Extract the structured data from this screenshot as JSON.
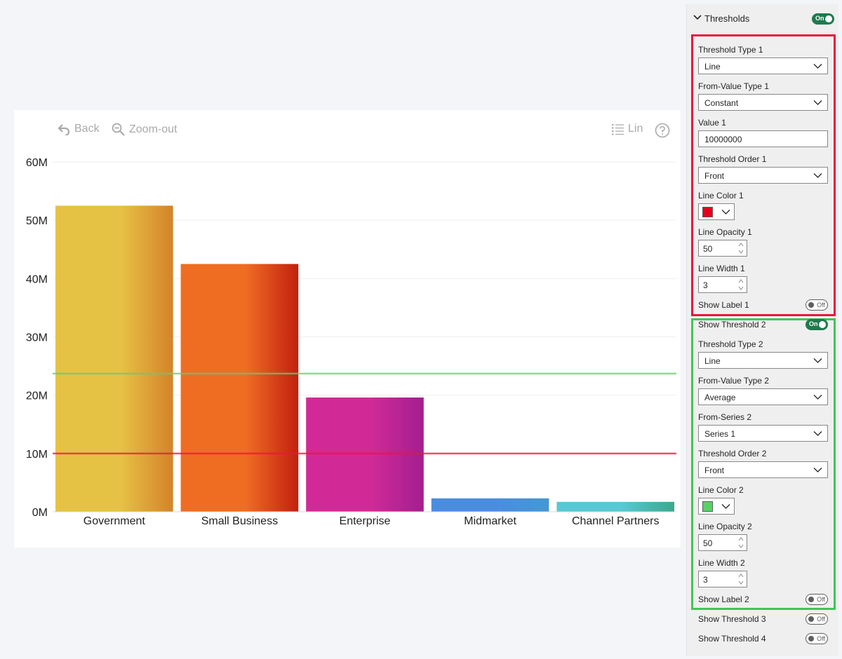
{
  "toolbar": {
    "back_label": "Back",
    "zoom_out_label": "Zoom-out",
    "scale_label": "Lin"
  },
  "chart_data": {
    "type": "bar",
    "categories": [
      "Government",
      "Small Business",
      "Enterprise",
      "Midmarket",
      "Channel Partners"
    ],
    "values": [
      52500000,
      42500000,
      19600000,
      2300000,
      1700000
    ],
    "bar_colors": [
      [
        "#e6c244",
        "#d4832a"
      ],
      [
        "#ef6d23",
        "#c2200f"
      ],
      [
        "#d12a97",
        "#a31e90"
      ],
      [
        "#4a8de0",
        "#4498d4"
      ],
      [
        "#58c8d4",
        "#3ca88e"
      ]
    ],
    "yticks": [
      "0M",
      "10M",
      "20M",
      "30M",
      "40M",
      "50M",
      "60M"
    ],
    "ylim": [
      0,
      60000000
    ],
    "grid": true,
    "thresholds": [
      {
        "value": 10000000,
        "color": "#e8173c"
      },
      {
        "value": 23700000,
        "color": "#5ed06d"
      }
    ]
  },
  "panel": {
    "title": "Thresholds",
    "title_toggle": "On",
    "threshold_type_1_label": "Threshold Type 1",
    "threshold_type_1_value": "Line",
    "from_value_type_1_label": "From-Value Type 1",
    "from_value_type_1_value": "Constant",
    "value_1_label": "Value 1",
    "value_1_value": "10000000",
    "threshold_order_1_label": "Threshold Order 1",
    "threshold_order_1_value": "Front",
    "line_color_1_label": "Line Color 1",
    "line_color_1": "#e8001c",
    "line_opacity_1_label": "Line Opacity 1",
    "line_opacity_1_value": "50",
    "line_width_1_label": "Line Width 1",
    "line_width_1_value": "3",
    "show_label_1_label": "Show Label 1",
    "show_label_1_toggle": "Off",
    "show_threshold_2_label": "Show Threshold 2",
    "show_threshold_2_toggle": "On",
    "threshold_type_2_label": "Threshold Type 2",
    "threshold_type_2_value": "Line",
    "from_value_type_2_label": "From-Value Type 2",
    "from_value_type_2_value": "Average",
    "from_series_2_label": "From-Series 2",
    "from_series_2_value": "Series 1",
    "threshold_order_2_label": "Threshold Order 2",
    "threshold_order_2_value": "Front",
    "line_color_2_label": "Line Color 2",
    "line_color_2": "#56d364",
    "line_opacity_2_label": "Line Opacity 2",
    "line_opacity_2_value": "50",
    "line_width_2_label": "Line Width 2",
    "line_width_2_value": "3",
    "show_label_2_label": "Show Label 2",
    "show_label_2_toggle": "Off",
    "show_threshold_3_label": "Show Threshold 3",
    "show_threshold_3_toggle": "Off",
    "show_threshold_4_label": "Show Threshold 4",
    "show_threshold_4_toggle": "Off"
  }
}
